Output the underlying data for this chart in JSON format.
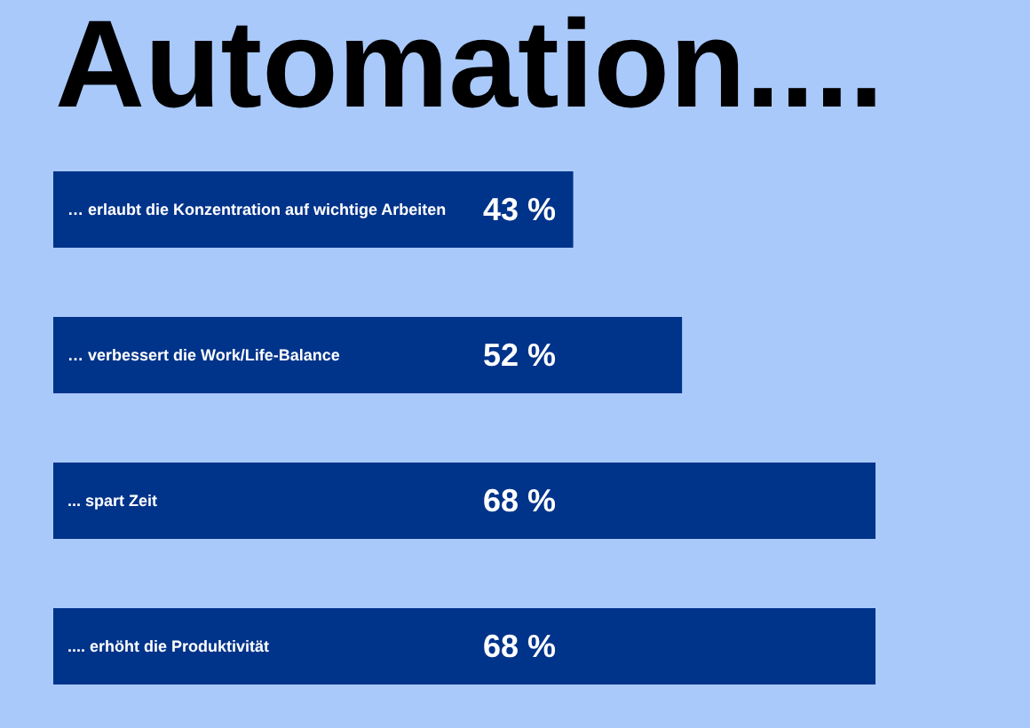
{
  "chart_data": {
    "type": "bar",
    "orientation": "horizontal",
    "title": "Automation....",
    "categories": [
      "… erlaubt die Konzentration auf wichtige Arbeiten",
      "… verbessert die Work/Life-Balance",
      "... spart Zeit",
      ".... erhöht die Produktivität"
    ],
    "values": [
      43,
      52,
      68,
      68
    ],
    "value_labels": [
      "43 %",
      "52 %",
      "68 %",
      "68 %"
    ],
    "color": "#00338a"
  }
}
